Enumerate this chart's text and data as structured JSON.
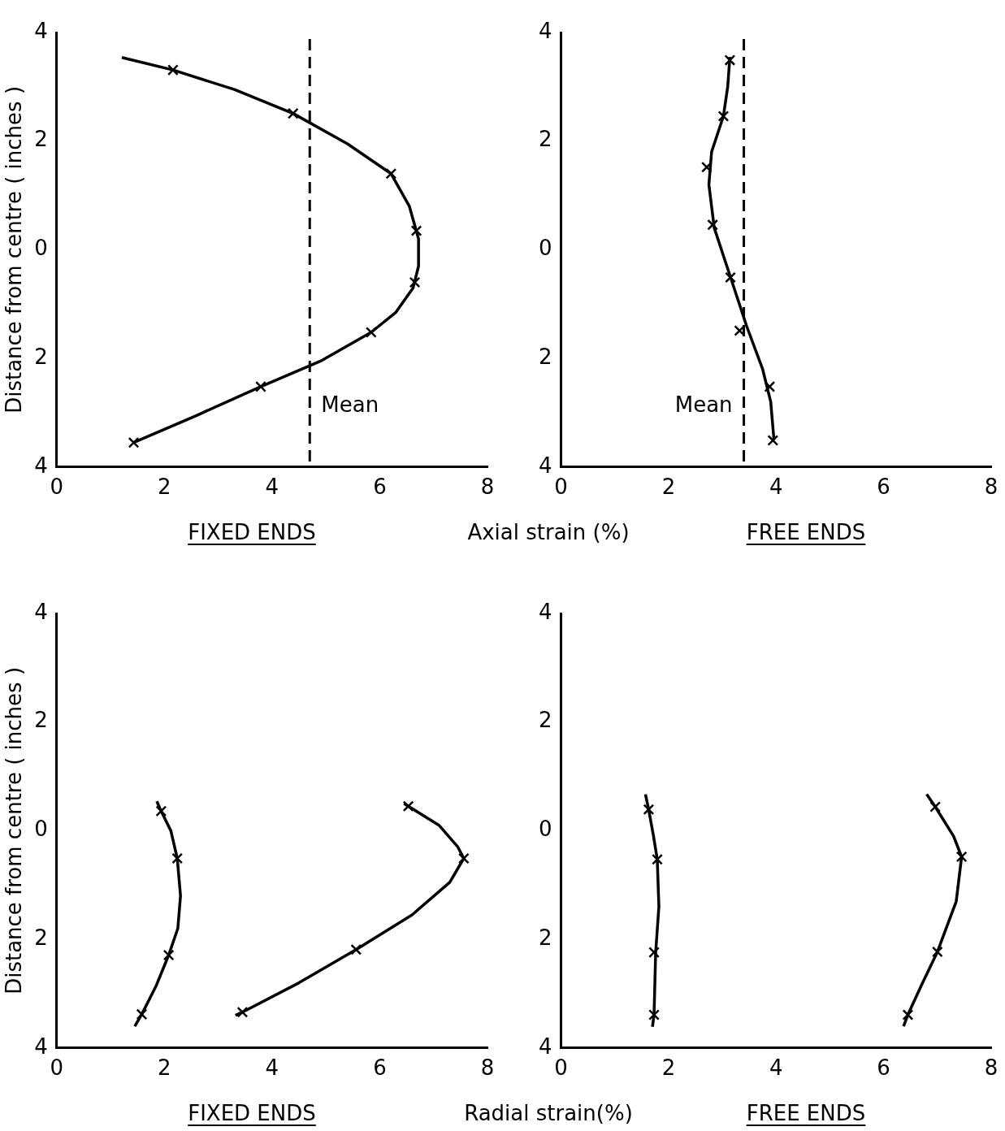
{
  "chart_data": [
    {
      "type": "line",
      "title": "FIXED ENDS",
      "xlabel": "Axial strain (%)",
      "ylabel": "Distance from centre ( inches )",
      "xlim": [
        0,
        8
      ],
      "xticks": [
        0,
        2,
        4,
        6,
        8
      ],
      "ylim": [
        -4,
        4
      ],
      "yticks": [
        {
          "value": -4,
          "label": "4"
        },
        {
          "value": -2,
          "label": "2"
        },
        {
          "value": 0,
          "label": "0"
        },
        {
          "value": 2,
          "label": "2"
        },
        {
          "value": 4,
          "label": "4"
        }
      ],
      "series": [
        {
          "type": "scatter",
          "color": "#000000",
          "marker": "cross",
          "x": [
            2.16,
            4.39,
            6.21,
            6.68,
            6.65,
            5.84,
            3.79,
            1.43
          ],
          "values": [
            3.31,
            2.51,
            1.4,
            0.35,
            -0.6,
            -1.52,
            -2.52,
            -3.55
          ]
        },
        {
          "type": "line",
          "color": "#000000",
          "marker": "none",
          "x": [
            1.21,
            2.16,
            3.3,
            4.39,
            5.4,
            6.21,
            6.55,
            6.72,
            6.72,
            6.62,
            6.3,
            5.84,
            4.9,
            3.79,
            2.6,
            1.43
          ],
          "values": [
            3.54,
            3.31,
            2.95,
            2.51,
            1.95,
            1.4,
            0.8,
            0.2,
            -0.3,
            -0.7,
            -1.15,
            -1.52,
            -2.05,
            -2.52,
            -3.05,
            -3.55
          ]
        }
      ],
      "ref_lines": [
        {
          "axis": "x",
          "value": 4.7,
          "label": "Mean",
          "line_style": "dashed"
        }
      ]
    },
    {
      "type": "line",
      "title": "FREE ENDS",
      "xlim": [
        0,
        8
      ],
      "xticks": [
        0,
        2,
        4,
        6,
        8
      ],
      "ylim": [
        -4,
        4
      ],
      "yticks": [
        {
          "value": -4,
          "label": "4"
        },
        {
          "value": -2,
          "label": "2"
        },
        {
          "value": 0,
          "label": "0"
        },
        {
          "value": 2,
          "label": "2"
        },
        {
          "value": 4,
          "label": "4"
        }
      ],
      "series": [
        {
          "type": "scatter",
          "color": "#000000",
          "marker": "cross",
          "x": [
            3.14,
            3.02,
            2.71,
            2.82,
            3.15,
            3.32,
            3.88,
            3.94
          ],
          "values": [
            3.49,
            2.46,
            1.52,
            0.46,
            -0.51,
            -1.49,
            -2.52,
            -3.51
          ]
        },
        {
          "type": "line",
          "color": "#000000",
          "marker": "none",
          "x": [
            3.14,
            3.1,
            3.02,
            2.8,
            2.75,
            2.85,
            3.15,
            3.45,
            3.75,
            3.9,
            3.96
          ],
          "values": [
            3.55,
            3.0,
            2.46,
            1.8,
            1.2,
            0.4,
            -0.5,
            -1.4,
            -2.2,
            -2.8,
            -3.5
          ]
        }
      ],
      "ref_lines": [
        {
          "axis": "x",
          "value": 3.4,
          "label": "Mean",
          "line_style": "dashed"
        }
      ]
    },
    {
      "type": "line",
      "title": "FIXED ENDS",
      "xlabel": "Radial strain(%)",
      "ylabel": "Distance from centre ( inches )",
      "xlim": [
        0,
        8
      ],
      "xticks": [
        0,
        2,
        4,
        6,
        8
      ],
      "ylim": [
        -4,
        4
      ],
      "yticks": [
        {
          "value": -4,
          "label": "4"
        },
        {
          "value": -2,
          "label": "2"
        },
        {
          "value": 0,
          "label": "0"
        },
        {
          "value": 2,
          "label": "2"
        },
        {
          "value": 4,
          "label": "4"
        }
      ],
      "series": [
        {
          "type": "scatter",
          "color": "#000000",
          "marker": "cross",
          "x": [
            1.94,
            2.24,
            2.08,
            1.58
          ],
          "values": [
            0.36,
            -0.51,
            -2.29,
            -3.38
          ]
        },
        {
          "type": "line",
          "color": "#000000",
          "marker": "none",
          "x": [
            1.86,
            1.94,
            2.12,
            2.24,
            2.3,
            2.25,
            2.08,
            1.85,
            1.58,
            1.45
          ],
          "values": [
            0.54,
            0.36,
            0.0,
            -0.51,
            -1.2,
            -1.8,
            -2.29,
            -2.85,
            -3.38,
            -3.6
          ]
        },
        {
          "type": "scatter",
          "color": "#000000",
          "marker": "cross",
          "x": [
            6.53,
            7.56,
            5.56,
            3.45
          ],
          "values": [
            0.45,
            -0.51,
            -2.19,
            -3.34
          ]
        },
        {
          "type": "line",
          "color": "#000000",
          "marker": "none",
          "x": [
            6.45,
            6.53,
            7.1,
            7.45,
            7.56,
            7.3,
            6.6,
            5.56,
            4.5,
            3.45,
            3.32
          ],
          "values": [
            0.5,
            0.45,
            0.1,
            -0.3,
            -0.51,
            -0.95,
            -1.55,
            -2.19,
            -2.8,
            -3.34,
            -3.4
          ]
        }
      ]
    },
    {
      "type": "line",
      "title": "FREE ENDS",
      "xlim": [
        0,
        8
      ],
      "xticks": [
        0,
        2,
        4,
        6,
        8
      ],
      "ylim": [
        -4,
        4
      ],
      "yticks": [
        {
          "value": -4,
          "label": "4"
        },
        {
          "value": -2,
          "label": "2"
        },
        {
          "value": 0,
          "label": "0"
        },
        {
          "value": 2,
          "label": "2"
        },
        {
          "value": 4,
          "label": "4"
        }
      ],
      "series": [
        {
          "type": "scatter",
          "color": "#000000",
          "marker": "cross",
          "x": [
            1.63,
            1.79,
            1.73,
            1.73
          ],
          "values": [
            0.39,
            -0.53,
            -2.24,
            -3.39
          ]
        },
        {
          "type": "line",
          "color": "#000000",
          "marker": "none",
          "x": [
            1.57,
            1.63,
            1.72,
            1.79,
            1.82,
            1.76,
            1.73,
            1.7
          ],
          "values": [
            0.67,
            0.39,
            -0.1,
            -0.53,
            -1.4,
            -2.24,
            -3.39,
            -3.61
          ]
        },
        {
          "type": "scatter",
          "color": "#000000",
          "marker": "cross",
          "x": [
            6.96,
            7.45,
            7.0,
            6.45
          ],
          "values": [
            0.44,
            -0.48,
            -2.23,
            -3.39
          ]
        },
        {
          "type": "line",
          "color": "#000000",
          "marker": "none",
          "x": [
            6.8,
            6.96,
            7.3,
            7.45,
            7.35,
            7.0,
            6.7,
            6.45,
            6.37
          ],
          "values": [
            0.67,
            0.44,
            -0.1,
            -0.48,
            -1.3,
            -2.23,
            -2.85,
            -3.39,
            -3.6
          ]
        }
      ]
    }
  ]
}
